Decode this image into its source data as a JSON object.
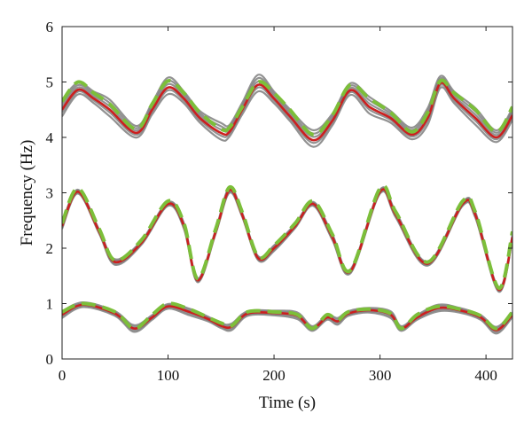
{
  "chart_data": {
    "type": "line",
    "title": "",
    "xlabel": "Time (s)",
    "ylabel": "Frequency (Hz)",
    "xlim": [
      0,
      425
    ],
    "ylim": [
      0,
      6
    ],
    "xticks": [
      0,
      100,
      200,
      300,
      400
    ],
    "yticks": [
      0,
      1,
      2,
      3,
      4,
      5,
      6
    ],
    "grid": false,
    "legend": "none",
    "colors": {
      "gray": "#7f7f7f",
      "red": "#cc1f1f",
      "green": "#7cbf3a"
    },
    "bands": [
      {
        "id": "upper",
        "x": [
          0,
          15,
          30,
          45,
          70,
          85,
          100,
          115,
          130,
          150,
          158,
          170,
          185,
          200,
          215,
          237,
          255,
          272,
          290,
          310,
          330,
          345,
          357,
          370,
          390,
          410,
          425
        ],
        "red": [
          4.5,
          4.86,
          4.7,
          4.5,
          4.08,
          4.5,
          4.9,
          4.7,
          4.35,
          4.08,
          4.1,
          4.5,
          4.95,
          4.7,
          4.38,
          3.95,
          4.3,
          4.85,
          4.55,
          4.35,
          4.05,
          4.35,
          4.98,
          4.7,
          4.35,
          4.0,
          4.4
        ],
        "green": [
          4.65,
          5.0,
          4.8,
          4.6,
          4.15,
          4.6,
          5.02,
          4.8,
          4.45,
          4.15,
          4.18,
          4.55,
          5.0,
          4.8,
          4.5,
          4.05,
          4.4,
          4.95,
          4.7,
          4.45,
          4.1,
          4.45,
          5.02,
          4.8,
          4.5,
          4.1,
          4.55
        ],
        "gray_offsets": [
          0.12,
          0.06,
          -0.05,
          -0.12,
          0.18
        ]
      },
      {
        "id": "middle",
        "x": [
          0,
          15,
          35,
          50,
          75,
          100,
          115,
          128,
          145,
          158,
          170,
          185,
          200,
          220,
          237,
          255,
          272,
          300,
          315,
          345,
          378,
          390,
          412,
          425
        ],
        "red": [
          2.4,
          3.02,
          2.3,
          1.75,
          2.1,
          2.8,
          2.4,
          1.42,
          2.3,
          3.05,
          2.6,
          1.82,
          2.0,
          2.4,
          2.8,
          2.2,
          1.58,
          3.02,
          2.6,
          1.72,
          2.8,
          2.6,
          1.25,
          2.2
        ],
        "green": [
          2.45,
          3.08,
          2.35,
          1.78,
          2.15,
          2.85,
          2.45,
          1.45,
          2.35,
          3.1,
          2.65,
          1.85,
          2.05,
          2.45,
          2.85,
          2.25,
          1.6,
          3.08,
          2.65,
          1.75,
          2.85,
          2.65,
          1.28,
          2.3
        ],
        "gray_offsets": [
          0.05,
          0.03,
          -0.03,
          -0.05
        ]
      },
      {
        "id": "lower",
        "x": [
          0,
          20,
          50,
          68,
          85,
          100,
          120,
          138,
          150,
          160,
          175,
          200,
          222,
          236,
          250,
          260,
          270,
          290,
          310,
          320,
          335,
          355,
          375,
          395,
          410,
          425
        ],
        "red": [
          0.8,
          0.98,
          0.82,
          0.55,
          0.75,
          0.95,
          0.85,
          0.72,
          0.6,
          0.58,
          0.82,
          0.83,
          0.78,
          0.55,
          0.75,
          0.68,
          0.82,
          0.88,
          0.8,
          0.55,
          0.75,
          0.92,
          0.88,
          0.75,
          0.52,
          0.8
        ],
        "green": [
          0.85,
          1.0,
          0.85,
          0.55,
          0.8,
          1.0,
          0.9,
          0.75,
          0.65,
          0.6,
          0.85,
          0.85,
          0.8,
          0.55,
          0.8,
          0.7,
          0.85,
          0.9,
          0.82,
          0.55,
          0.8,
          0.95,
          0.9,
          0.78,
          0.55,
          0.85
        ],
        "gray_offsets": [
          0.06,
          0.03,
          -0.03,
          -0.06
        ]
      }
    ]
  }
}
